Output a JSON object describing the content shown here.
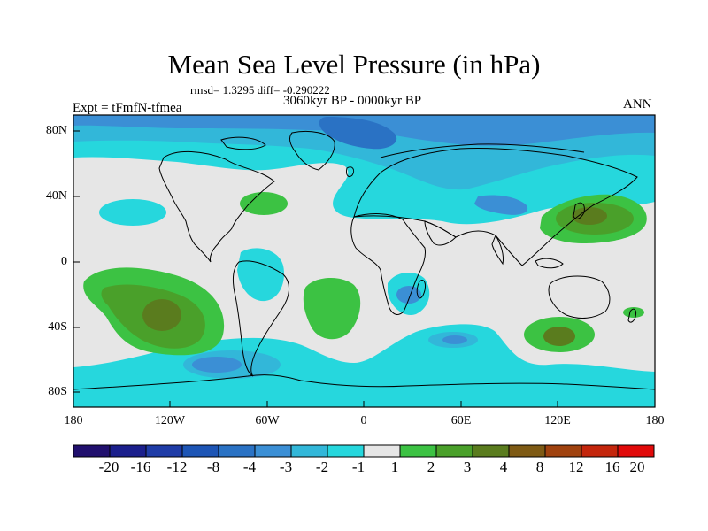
{
  "title": "Mean Sea Level Pressure (in hPa)",
  "stats": "rmsd= 1.3295 diff= -0.290222",
  "period": "3060kyr BP - 0000kyr BP",
  "experiment": "Expt = tFmfN-tfmea",
  "season": "ANN",
  "axes": {
    "y_ticks": [
      "80N",
      "40N",
      "0",
      "40S",
      "80S"
    ],
    "x_ticks": [
      "180",
      "120W",
      "60W",
      "0",
      "60E",
      "120E",
      "180"
    ]
  },
  "colorbar": {
    "labels": [
      "-20",
      "-16",
      "-12",
      "-8",
      "-4",
      "-3",
      "-2",
      "-1",
      "1",
      "2",
      "3",
      "4",
      "8",
      "12",
      "16",
      "20"
    ],
    "colors": [
      "#21106e",
      "#1b1f8c",
      "#1f3ca7",
      "#1d55b5",
      "#2a72c4",
      "#3b8fd5",
      "#32b7d9",
      "#26d7dd",
      "#e6e6e6",
      "#3cc243",
      "#4aa02a",
      "#5a7c1e",
      "#7e5a14",
      "#a0420f",
      "#c4260c",
      "#e10a0a"
    ]
  },
  "map_colors": {
    "neutral": "#e6e6e6",
    "level_neg1": "#26d7dd",
    "level_neg2": "#32b7d9",
    "level_neg3": "#3b8fd5",
    "level_neg4": "#2a72c4",
    "level_pos1": "#3cc243",
    "level_pos2": "#4aa02a",
    "level_pos3": "#5a7c1e"
  }
}
